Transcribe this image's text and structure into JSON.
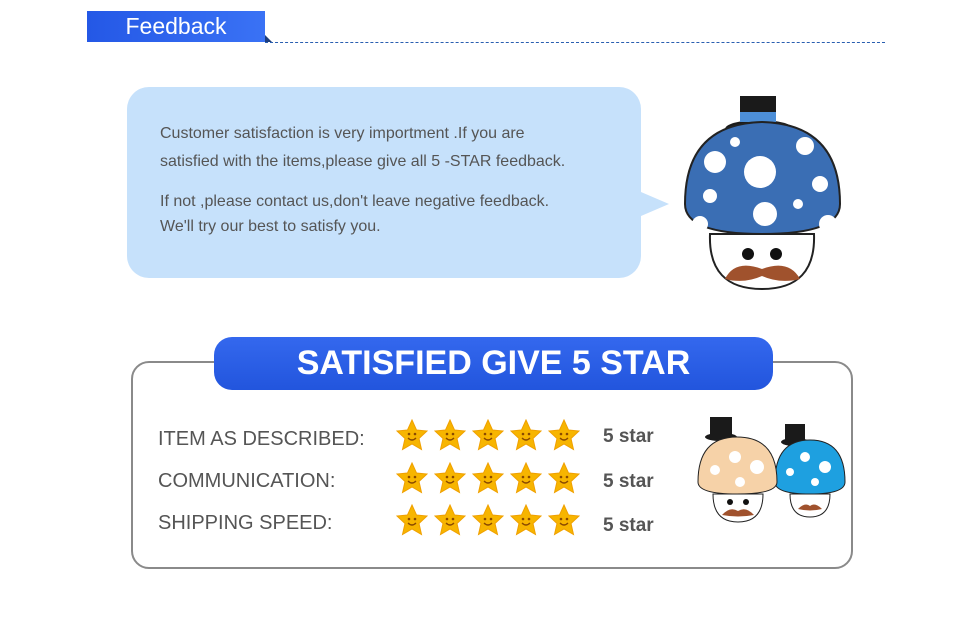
{
  "header": {
    "title": "Feedback"
  },
  "bubble": {
    "lines": [
      "Customer satisfaction is very importment .If  you are",
      "satisfied with the items,please give  all 5 -STAR feedback.",
      "If  not ,please contact us,don't leave negative feedback.",
      "We'll try our best to satisfy you."
    ]
  },
  "ratings": {
    "title": "SATISFIED GIVE 5 STAR",
    "rows": [
      {
        "label": "ITEM AS DESCRIBED:",
        "stars": 5,
        "value": "5 star"
      },
      {
        "label": "COMMUNICATION:",
        "stars": 5,
        "value": "5 star"
      },
      {
        "label": "SHIPPING SPEED:",
        "stars": 5,
        "value": "5 star"
      }
    ]
  },
  "colors": {
    "accent": "#2458e6",
    "bubble": "#c6e1fb",
    "text": "#555555",
    "star": "#f7b500"
  }
}
